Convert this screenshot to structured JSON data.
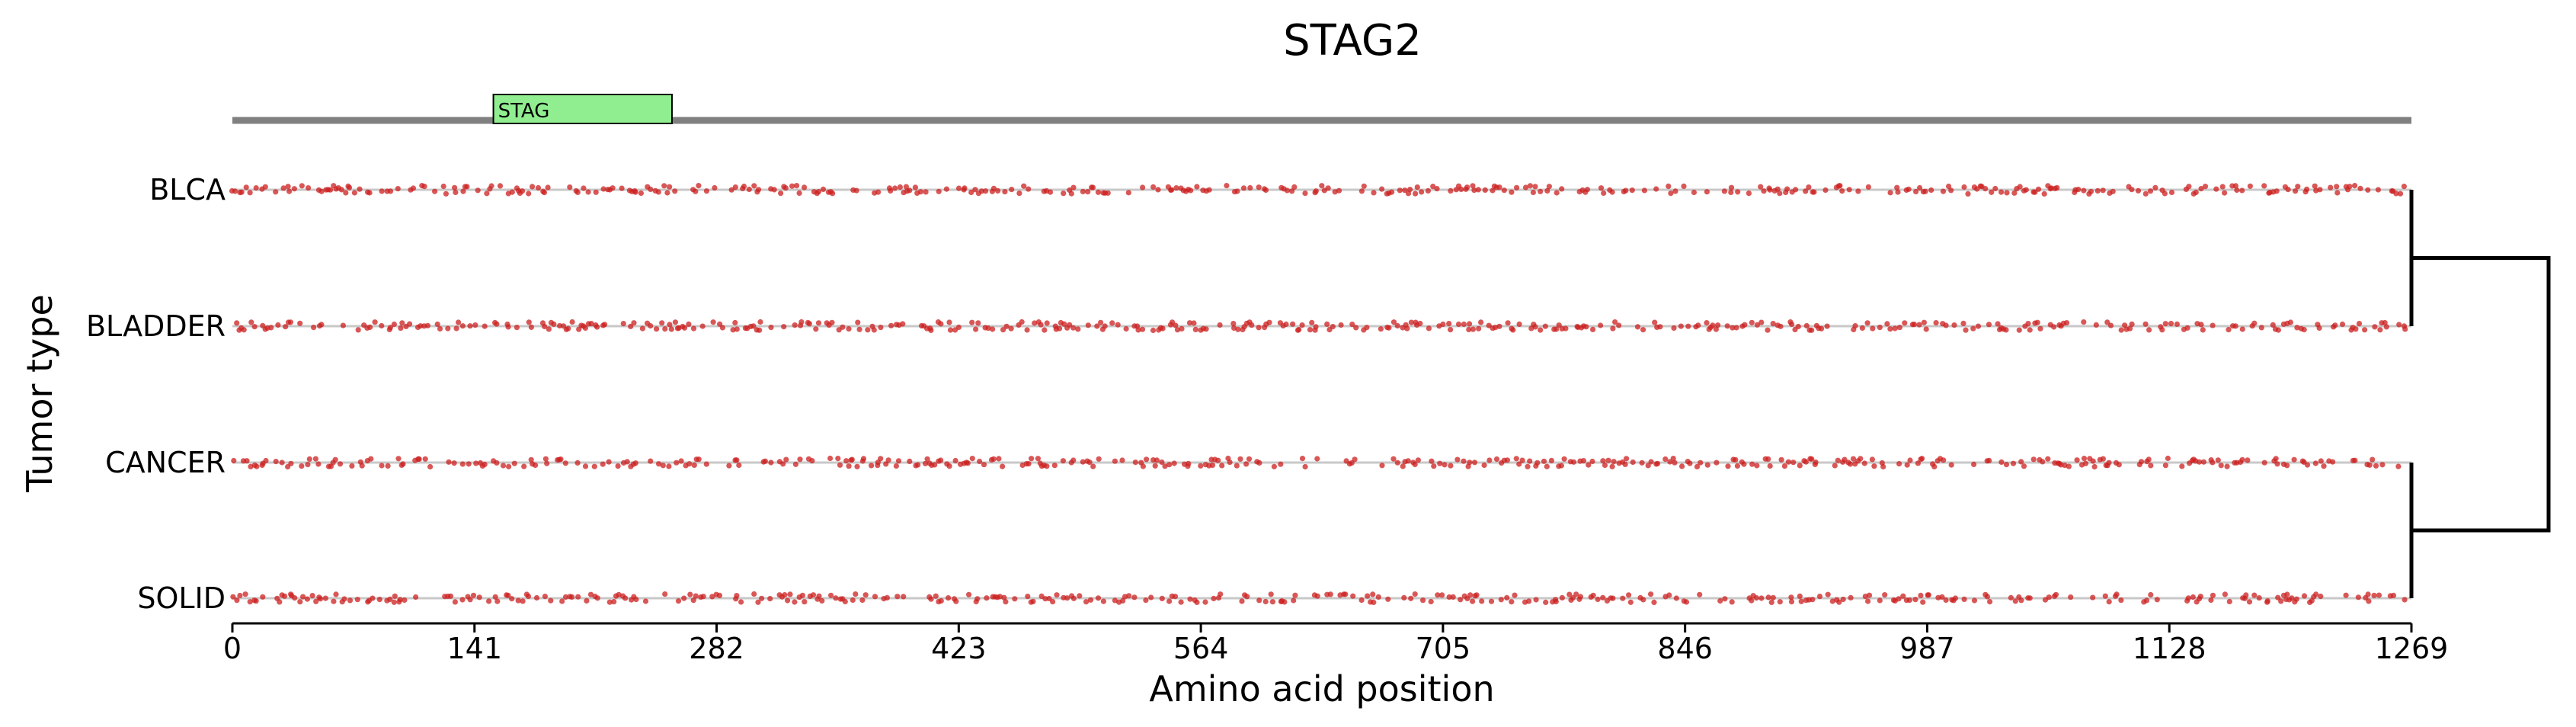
{
  "chart_data": {
    "type": "scatter",
    "title": "STAG2",
    "xlabel": "Amino acid position",
    "ylabel": "Tumor type",
    "xlim": [
      0,
      1269
    ],
    "xticks": [
      0,
      141,
      282,
      423,
      564,
      705,
      846,
      987,
      1128,
      1269
    ],
    "categories": [
      "BLCA",
      "BLADDER",
      "CANCER",
      "SOLID"
    ],
    "point_color": "#cc1f1f",
    "protein_length": 1269,
    "domains": [
      {
        "name": "STAG",
        "start": 152,
        "end": 256,
        "color": "#90ee90"
      }
    ],
    "dendrogram": {
      "clusters": [
        [
          "BLCA",
          "BLADDER"
        ],
        [
          "CANCER",
          "SOLID"
        ]
      ],
      "join": "root"
    },
    "series_note_hidden": false
  }
}
